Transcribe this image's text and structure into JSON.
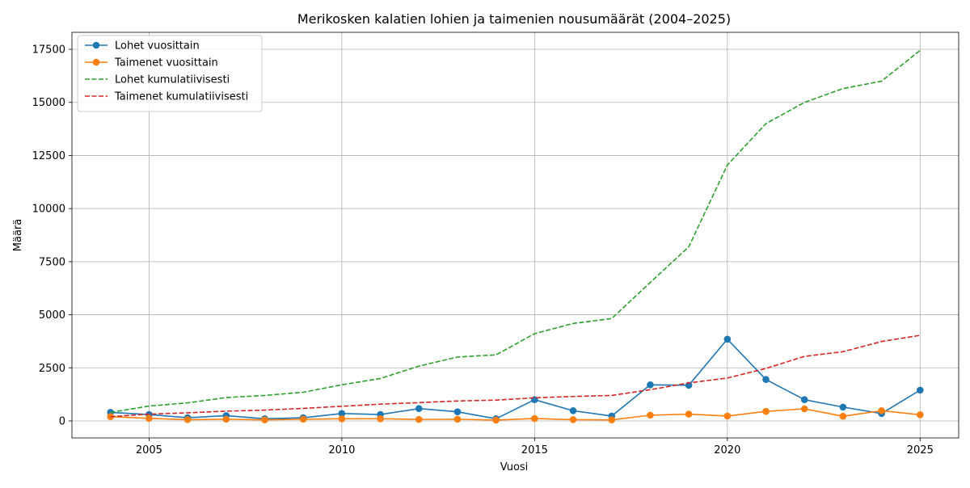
{
  "chart_data": {
    "type": "line",
    "title": "Merikosken kalatien lohien ja taimenien nousumäärät (2004–2025)",
    "xlabel": "Vuosi",
    "ylabel": "Määrä",
    "x": [
      2004,
      2005,
      2006,
      2007,
      2008,
      2009,
      2010,
      2011,
      2012,
      2013,
      2014,
      2015,
      2016,
      2017,
      2018,
      2019,
      2020,
      2021,
      2022,
      2023,
      2024,
      2025
    ],
    "xlim": [
      2003,
      2026
    ],
    "ylim": [
      -800,
      18300
    ],
    "xticks": [
      2005,
      2010,
      2015,
      2020,
      2025
    ],
    "yticks": [
      0,
      2500,
      5000,
      7500,
      10000,
      12500,
      15000,
      17500
    ],
    "grid": true,
    "legend_position": "top-left",
    "series": [
      {
        "name": "Lohet vuosittain",
        "color": "#1f77b4",
        "style": "solid-marker",
        "values": [
          400,
          300,
          150,
          250,
          100,
          150,
          350,
          300,
          580,
          430,
          100,
          1000,
          480,
          230,
          1700,
          1680,
          3850,
          1950,
          1000,
          650,
          350,
          1450
        ]
      },
      {
        "name": "Taimenet vuosittain",
        "color": "#ff7f0e",
        "style": "solid-marker",
        "values": [
          200,
          120,
          60,
          80,
          50,
          80,
          100,
          100,
          70,
          80,
          40,
          110,
          60,
          50,
          270,
          320,
          230,
          450,
          570,
          220,
          480,
          290
        ]
      },
      {
        "name": "Lohet kumulatiivisesti",
        "color": "#2ca02c",
        "style": "dashed",
        "values": [
          400,
          700,
          850,
          1100,
          1200,
          1350,
          1700,
          2000,
          2580,
          3010,
          3110,
          4110,
          4590,
          4820,
          6520,
          8200,
          12050,
          14000,
          15000,
          15650,
          16000,
          17450
        ]
      },
      {
        "name": "Taimenet kumulatiivisesti",
        "color": "#d62728",
        "style": "dashed",
        "values": [
          200,
          320,
          380,
          460,
          510,
          590,
          690,
          790,
          860,
          940,
          980,
          1090,
          1150,
          1200,
          1470,
          1790,
          2020,
          2470,
          3040,
          3260,
          3740,
          4030
        ]
      }
    ]
  }
}
